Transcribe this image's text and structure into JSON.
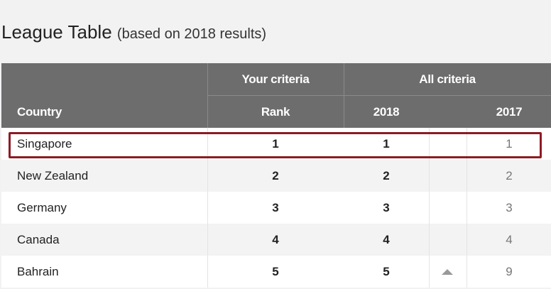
{
  "title": "League Table",
  "subtitle": "(based on 2018 results)",
  "header": {
    "group_your": "Your criteria",
    "group_all": "All criteria",
    "col_country": "Country",
    "col_rank": "Rank",
    "col_2018": "2018",
    "col_2017": "2017"
  },
  "rows": [
    {
      "country": "Singapore",
      "rank": "1",
      "y2018": "1",
      "y2017": "1",
      "trend": ""
    },
    {
      "country": "New Zealand",
      "rank": "2",
      "y2018": "2",
      "y2017": "2",
      "trend": ""
    },
    {
      "country": "Germany",
      "rank": "3",
      "y2018": "3",
      "y2017": "3",
      "trend": ""
    },
    {
      "country": "Canada",
      "rank": "4",
      "y2018": "4",
      "y2017": "4",
      "trend": ""
    },
    {
      "country": "Bahrain",
      "rank": "5",
      "y2018": "5",
      "y2017": "9",
      "trend": "up-arrow-icon"
    }
  ],
  "colors": {
    "header_bg": "#6d6d6e",
    "highlight": "#8c1c24"
  }
}
